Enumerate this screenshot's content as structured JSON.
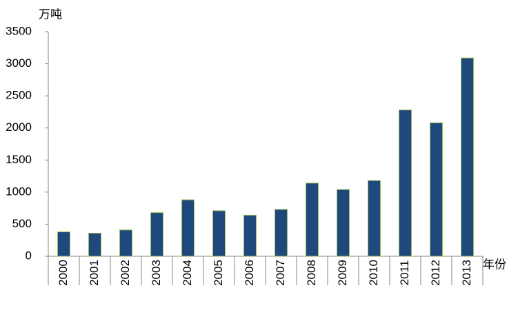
{
  "chart_data": {
    "type": "bar",
    "y_label": "万吨",
    "x_label": "年份",
    "categories": [
      "2000",
      "2001",
      "2002",
      "2003",
      "2004",
      "2005",
      "2006",
      "2007",
      "2008",
      "2009",
      "2010",
      "2011",
      "2012",
      "2013"
    ],
    "values": [
      380,
      360,
      410,
      680,
      880,
      710,
      640,
      730,
      1140,
      1040,
      1180,
      2280,
      2080,
      3090
    ],
    "color": "#1f497d",
    "edge_color": "#9bbb59",
    "ylim": [
      0,
      3500
    ],
    "yticks": [
      0,
      500,
      1000,
      1500,
      2000,
      2500,
      3000,
      3500
    ],
    "grid": false
  }
}
